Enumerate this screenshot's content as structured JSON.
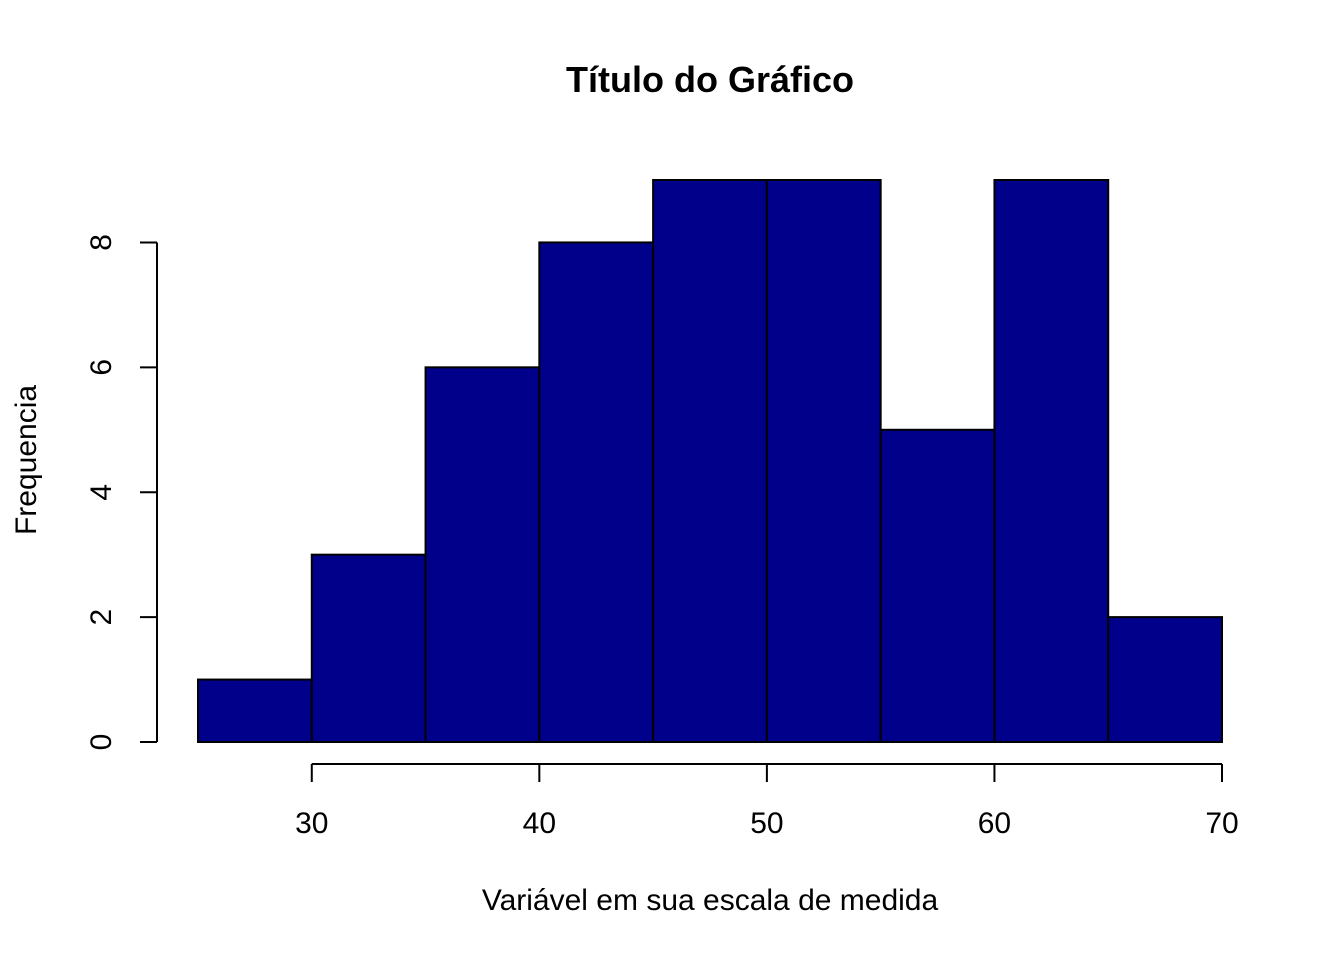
{
  "chart_data": {
    "type": "bar",
    "title": "Título do Gráfico",
    "xlabel": "Variável em sua escala de medida",
    "ylabel": "Frequencia",
    "bins": [
      {
        "start": 25,
        "end": 30,
        "count": 1
      },
      {
        "start": 30,
        "end": 35,
        "count": 3
      },
      {
        "start": 35,
        "end": 40,
        "count": 6
      },
      {
        "start": 40,
        "end": 45,
        "count": 8
      },
      {
        "start": 45,
        "end": 50,
        "count": 9
      },
      {
        "start": 50,
        "end": 55,
        "count": 9
      },
      {
        "start": 55,
        "end": 60,
        "count": 5
      },
      {
        "start": 60,
        "end": 65,
        "count": 9
      },
      {
        "start": 65,
        "end": 70,
        "count": 2
      }
    ],
    "xticks": [
      30,
      40,
      50,
      60,
      70
    ],
    "yticks": [
      0,
      2,
      4,
      6,
      8
    ],
    "xlim": [
      25,
      70
    ],
    "ylim": [
      0,
      9
    ],
    "grid": false,
    "bar_color": "#00008B",
    "edge_color": "#000000"
  }
}
